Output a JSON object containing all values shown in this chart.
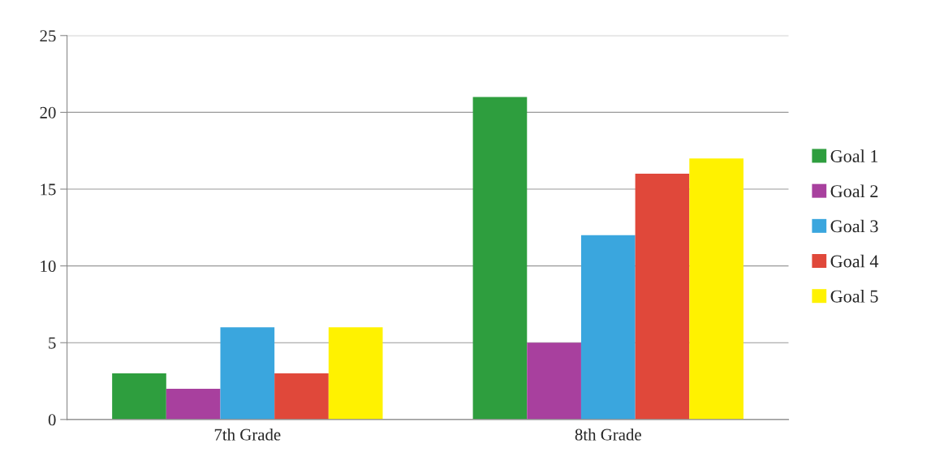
{
  "chart_data": {
    "type": "bar",
    "categories": [
      "7th Grade",
      "8th Grade"
    ],
    "series": [
      {
        "name": "Goal 1",
        "color": "#2e9e3e",
        "values": [
          3,
          21
        ]
      },
      {
        "name": "Goal 2",
        "color": "#a8409e",
        "values": [
          2,
          5
        ]
      },
      {
        "name": "Goal 3",
        "color": "#3aa6de",
        "values": [
          6,
          12
        ]
      },
      {
        "name": "Goal 4",
        "color": "#e0483a",
        "values": [
          3,
          16
        ]
      },
      {
        "name": "Goal 5",
        "color": "#fff200",
        "values": [
          6,
          17
        ]
      }
    ],
    "ylim": [
      0,
      25
    ],
    "yticks": [
      0,
      5,
      10,
      15,
      20,
      25
    ],
    "grid": "y",
    "legend": "right"
  }
}
